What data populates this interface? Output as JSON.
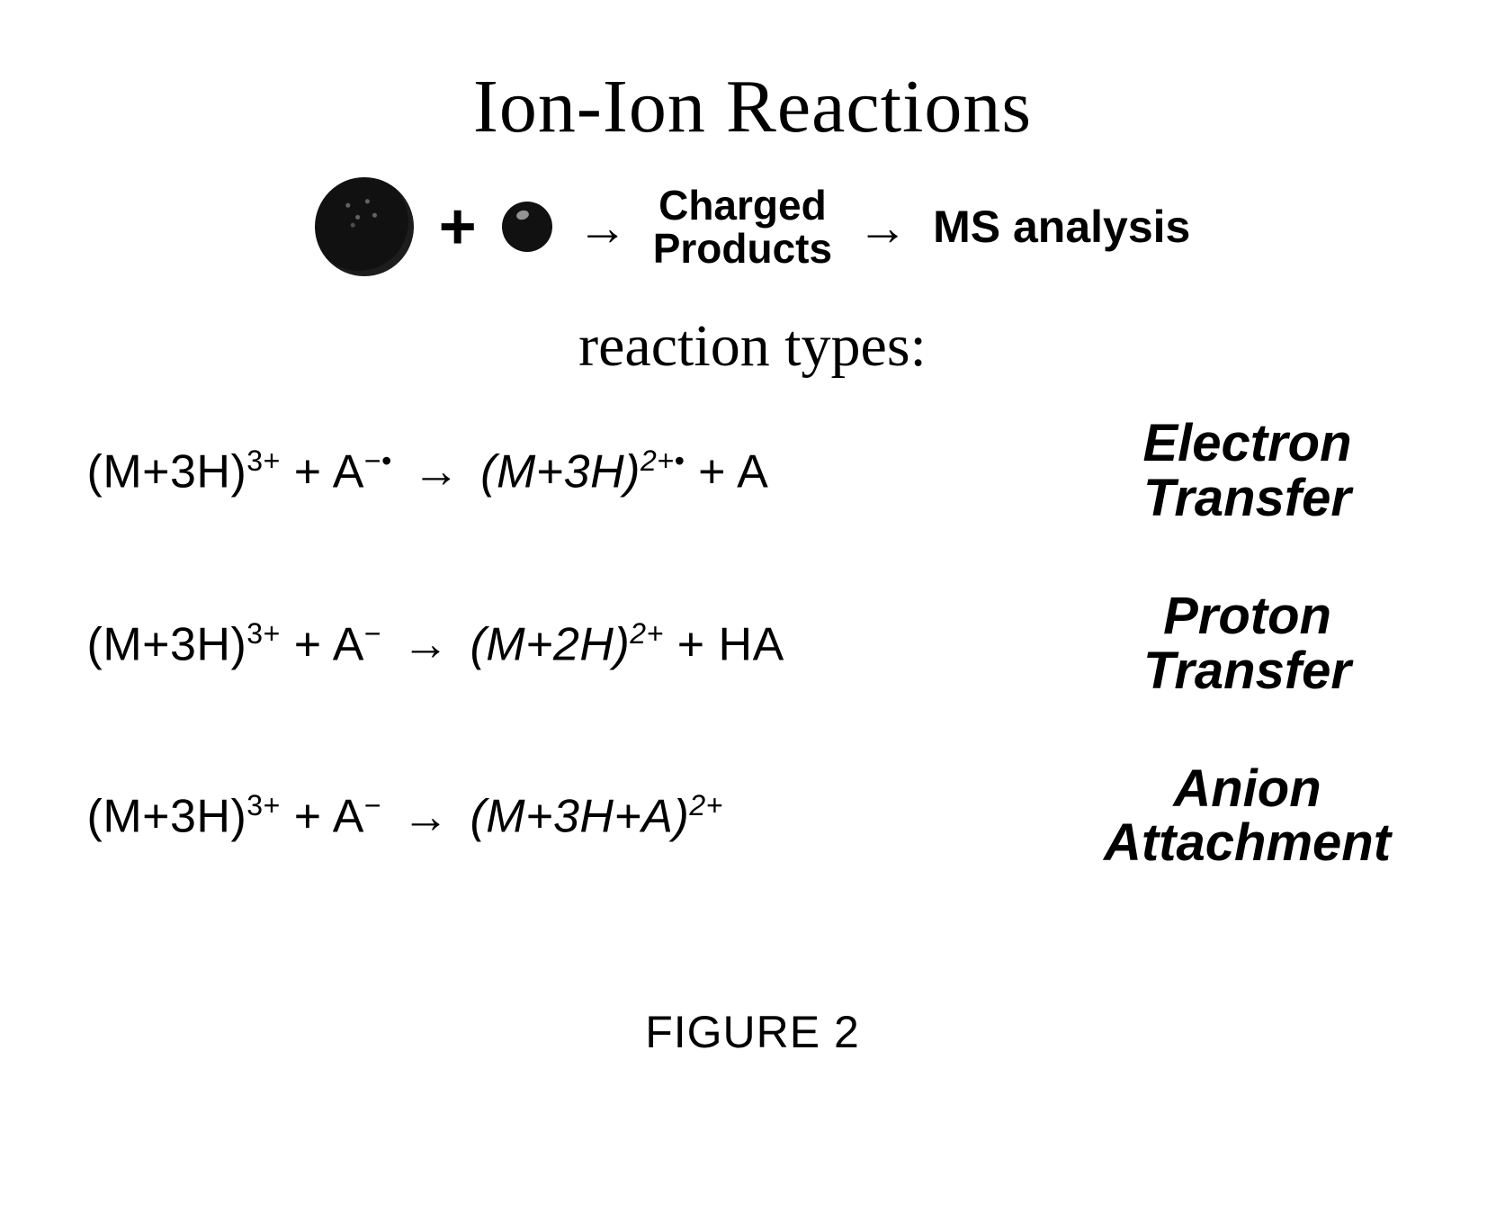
{
  "title": "Ion-Ion Reactions",
  "scheme": {
    "plus": "+",
    "arrow": "→",
    "charged_products_line1": "Charged",
    "charged_products_line2": "Products",
    "ms_analysis": "MS analysis",
    "big_ion_color": "#111111",
    "small_ion_color": "#111111"
  },
  "subtitle": "reaction types:",
  "reactions": [
    {
      "reactant1_base": "(M+3H)",
      "reactant1_super": "3+",
      "plus": " + ",
      "reactant2_base": "A",
      "reactant2_super": "−•",
      "arrow": "→",
      "product1_base": "(M+3H)",
      "product1_super": "2+•",
      "product1_italic": true,
      "product_plus": " + ",
      "product2_base": "A",
      "product2_super": "",
      "label_line1": "Electron",
      "label_line2": "Transfer"
    },
    {
      "reactant1_base": "(M+3H)",
      "reactant1_super": "3+",
      "plus": " + ",
      "reactant2_base": "A",
      "reactant2_super": "−",
      "arrow": "→",
      "product1_base": "(M+2H)",
      "product1_super": "2+",
      "product1_italic": true,
      "product_plus": " + ",
      "product2_base": "HA",
      "product2_super": "",
      "label_line1": "Proton",
      "label_line2": "Transfer"
    },
    {
      "reactant1_base": "(M+3H)",
      "reactant1_super": "3+",
      "plus": " + ",
      "reactant2_base": "A",
      "reactant2_super": "−",
      "arrow": "→",
      "product1_base": "(M+3H+A)",
      "product1_super": "2+",
      "product1_italic": true,
      "product_plus": "",
      "product2_base": "",
      "product2_super": "",
      "label_line1": "Anion",
      "label_line2": "Attachment"
    }
  ],
  "figure_caption": "FIGURE 2",
  "style": {
    "background_color": "#ffffff",
    "text_color": "#000000",
    "title_font": "Times New Roman",
    "title_fontsize_pt": 63,
    "subtitle_fontsize_pt": 50,
    "body_font": "Helvetica",
    "equation_fontsize_pt": 39,
    "label_fontsize_pt": 44,
    "caption_fontsize_pt": 38
  }
}
